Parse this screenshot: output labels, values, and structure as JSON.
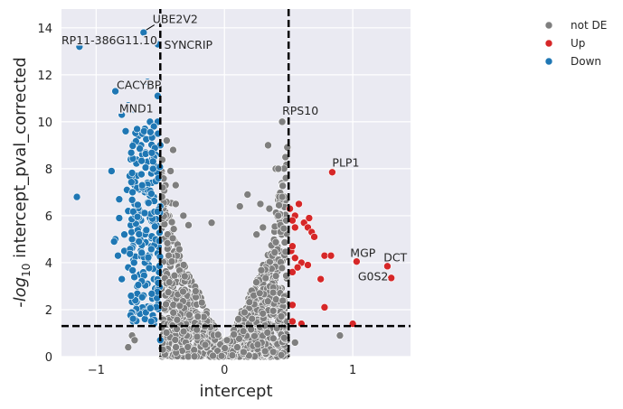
{
  "chart_data": {
    "type": "scatter",
    "xlabel": "intercept",
    "ylabel_prefix": "-log",
    "ylabel_sub": "10",
    "ylabel_suffix": " intercept_pval_corrected",
    "xlim": [
      -1.27,
      1.45
    ],
    "ylim": [
      0,
      14.8
    ],
    "xticks": [
      -1,
      0,
      1
    ],
    "xtick_labels": [
      "−1",
      "0",
      "1"
    ],
    "yticks": [
      0,
      2,
      4,
      6,
      8,
      10,
      12,
      14
    ],
    "ytick_labels": [
      "0",
      "2",
      "4",
      "6",
      "8",
      "10",
      "12",
      "14"
    ],
    "grid": true,
    "thresholds": {
      "x": [
        -0.5,
        0.5
      ],
      "y": 1.3
    },
    "legend": {
      "placement": "top-right-outside",
      "entries": [
        {
          "label": "not DE",
          "color": "#7f7f7f"
        },
        {
          "label": "Up",
          "color": "#d62728"
        },
        {
          "label": "Down",
          "color": "#1f77b4"
        }
      ]
    },
    "series": [
      {
        "name": "Down",
        "color": "#1f77b4",
        "points": [
          [
            -1.13,
            13.2
          ],
          [
            -0.63,
            13.8
          ],
          [
            -0.52,
            13.3
          ],
          [
            -0.85,
            11.3
          ],
          [
            -0.6,
            11.7
          ],
          [
            -0.52,
            11.1
          ],
          [
            -0.75,
            10.7
          ],
          [
            -0.8,
            10.3
          ],
          [
            -0.7,
            10.5
          ],
          [
            -1.15,
            6.8
          ],
          [
            -0.88,
            7.9
          ],
          [
            -0.82,
            6.7
          ],
          [
            -0.82,
            5.9
          ],
          [
            -0.85,
            5.0
          ],
          [
            -0.83,
            4.3
          ],
          [
            -0.8,
            3.3
          ],
          [
            -0.75,
            3.8
          ],
          [
            -0.7,
            2.3
          ],
          [
            -0.63,
            2.0
          ],
          [
            -0.62,
            1.6
          ],
          [
            -0.55,
            1.4
          ],
          [
            -0.52,
            2.4
          ],
          [
            -0.5,
            0.7
          ],
          [
            -0.5,
            6.4
          ],
          [
            -0.5,
            9.0
          ],
          [
            -0.86,
            4.9
          ],
          [
            -0.78,
            5.2
          ],
          [
            -0.58,
            10.0
          ],
          [
            -0.52,
            10.0
          ],
          [
            -0.55,
            9.8
          ],
          [
            -0.7,
            9.1
          ],
          [
            -0.65,
            9.0
          ],
          [
            -0.53,
            7.5
          ],
          [
            -0.53,
            5.6
          ],
          [
            -0.52,
            4.4
          ],
          [
            -0.51,
            3.6
          ],
          [
            -0.64,
            8.6
          ],
          [
            -0.73,
            8.4
          ],
          [
            -0.6,
            8.3
          ],
          [
            -0.68,
            7.7
          ],
          [
            -0.76,
            7.1
          ],
          [
            -0.62,
            7.0
          ],
          [
            -0.7,
            6.5
          ],
          [
            -0.66,
            6.2
          ],
          [
            -0.58,
            5.9
          ],
          [
            -0.73,
            5.6
          ],
          [
            -0.61,
            5.3
          ],
          [
            -0.69,
            4.9
          ],
          [
            -0.57,
            4.7
          ],
          [
            -0.64,
            4.4
          ],
          [
            -0.71,
            4.1
          ],
          [
            -0.59,
            3.9
          ],
          [
            -0.66,
            3.5
          ],
          [
            -0.6,
            3.1
          ],
          [
            -0.54,
            2.9
          ],
          [
            -0.63,
            2.6
          ],
          [
            -0.56,
            2.1
          ],
          [
            -0.77,
            9.6
          ],
          [
            -0.67,
            9.4
          ],
          [
            -0.55,
            8.8
          ],
          [
            -0.6,
            7.4
          ],
          [
            -0.55,
            6.8
          ],
          [
            -0.65,
            5.8
          ],
          [
            -0.72,
            5.0
          ],
          [
            -0.56,
            5.1
          ],
          [
            -0.62,
            4.0
          ],
          [
            -0.55,
            3.3
          ],
          [
            -0.68,
            3.0
          ],
          [
            -0.58,
            6.6
          ],
          [
            -0.75,
            6.2
          ],
          [
            -0.78,
            4.5
          ],
          [
            -0.62,
            9.7
          ],
          [
            -0.54,
            8.1
          ],
          [
            -0.7,
            7.3
          ],
          [
            -0.57,
            7.8
          ]
        ]
      },
      {
        "name": "Up",
        "color": "#d62728",
        "points": [
          [
            0.84,
            7.85
          ],
          [
            1.03,
            4.05
          ],
          [
            1.27,
            3.85
          ],
          [
            1.3,
            3.35
          ],
          [
            0.51,
            6.3
          ],
          [
            0.58,
            6.5
          ],
          [
            0.55,
            6.0
          ],
          [
            0.53,
            5.8
          ],
          [
            0.55,
            5.5
          ],
          [
            0.62,
            5.7
          ],
          [
            0.66,
            5.9
          ],
          [
            0.65,
            5.5
          ],
          [
            0.68,
            5.3
          ],
          [
            0.7,
            5.1
          ],
          [
            0.52,
            4.5
          ],
          [
            0.55,
            4.2
          ],
          [
            0.6,
            4.0
          ],
          [
            0.53,
            3.6
          ],
          [
            0.57,
            3.8
          ],
          [
            0.65,
            3.9
          ],
          [
            0.78,
            4.3
          ],
          [
            0.83,
            4.3
          ],
          [
            0.75,
            3.3
          ],
          [
            0.78,
            2.1
          ],
          [
            0.53,
            1.5
          ],
          [
            0.6,
            1.4
          ],
          [
            0.53,
            2.2
          ],
          [
            1.0,
            1.4
          ],
          [
            0.53,
            4.7
          ]
        ]
      },
      {
        "name": "not DE",
        "color": "#7f7f7f",
        "points": [
          [
            0.45,
            10.0
          ],
          [
            0.34,
            9.0
          ],
          [
            0.4,
            8.0
          ],
          [
            0.42,
            8.0
          ],
          [
            0.18,
            6.9
          ],
          [
            0.12,
            6.4
          ],
          [
            0.28,
            6.5
          ],
          [
            0.35,
            6.3
          ],
          [
            0.45,
            6.8
          ],
          [
            -0.45,
            9.2
          ],
          [
            -0.4,
            8.8
          ],
          [
            -0.42,
            7.9
          ],
          [
            -0.38,
            7.3
          ],
          [
            -0.1,
            5.7
          ],
          [
            0.25,
            5.2
          ],
          [
            0.3,
            5.5
          ],
          [
            0.9,
            0.9
          ],
          [
            -0.72,
            0.9
          ],
          [
            -0.7,
            0.7
          ],
          [
            -0.75,
            0.4
          ],
          [
            0.55,
            0.6
          ],
          [
            -0.38,
            6.5
          ],
          [
            -0.32,
            6.0
          ],
          [
            -0.28,
            5.6
          ],
          [
            0.42,
            6.0
          ],
          [
            -0.48,
            0.3
          ],
          [
            0.38,
            0.2
          ],
          [
            -0.15,
            0.5
          ],
          [
            0.02,
            0.7
          ],
          [
            0.1,
            0.4
          ]
        ]
      }
    ],
    "annotations": [
      {
        "text": "UBE2V2",
        "x": -0.56,
        "y": 14.2,
        "point": [
          -0.63,
          13.8
        ]
      },
      {
        "text": "RP11-386G11.10",
        "x": -1.27,
        "y": 13.3,
        "point": [
          -1.13,
          13.2
        ]
      },
      {
        "text": "SYNCRIP",
        "x": -0.47,
        "y": 13.1,
        "point": [
          -0.52,
          13.3
        ]
      },
      {
        "text": "CACYBP",
        "x": -0.84,
        "y": 11.4,
        "point": [
          -0.85,
          11.3
        ]
      },
      {
        "text": "MND1",
        "x": -0.82,
        "y": 10.4,
        "point": [
          -0.8,
          10.3
        ]
      },
      {
        "text": "RPS10",
        "x": 0.45,
        "y": 10.3,
        "point": [
          0.45,
          10.0
        ]
      },
      {
        "text": "PLP1",
        "x": 0.84,
        "y": 8.1,
        "point": [
          0.84,
          7.85
        ]
      },
      {
        "text": "MGP",
        "x": 0.98,
        "y": 4.25,
        "point": [
          1.03,
          4.05
        ]
      },
      {
        "text": "DCT",
        "x": 1.24,
        "y": 4.05,
        "point": [
          1.27,
          3.85
        ]
      },
      {
        "text": "G0S2",
        "x": 1.04,
        "y": 3.25,
        "point": [
          1.3,
          3.35
        ]
      }
    ]
  }
}
